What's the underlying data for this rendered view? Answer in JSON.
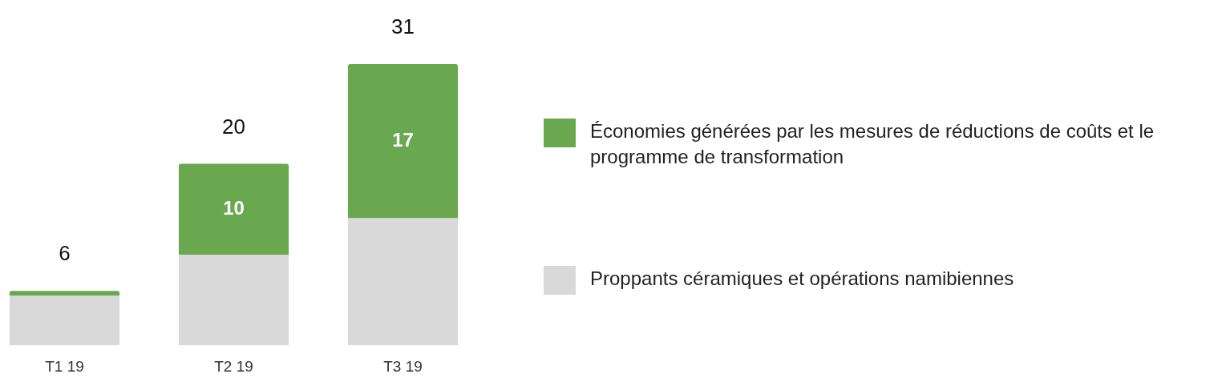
{
  "chart_data": {
    "type": "bar",
    "stacked": true,
    "legend": "right",
    "categories": [
      "T1 19",
      "T2 19",
      "T3 19"
    ],
    "series": [
      {
        "name": "Proppants céramiques et opérations namibiennes",
        "color": "#d9d9d9",
        "values": [
          5.5,
          10,
          14
        ]
      },
      {
        "name": "Économies générées par les mesures de réductions de coûts et le programme de transformation",
        "color": "#6aa84f",
        "values": [
          0.5,
          10,
          17
        ],
        "value_labels": [
          null,
          "10",
          "17"
        ]
      }
    ],
    "totals": [
      "6",
      "20",
      "31"
    ]
  }
}
